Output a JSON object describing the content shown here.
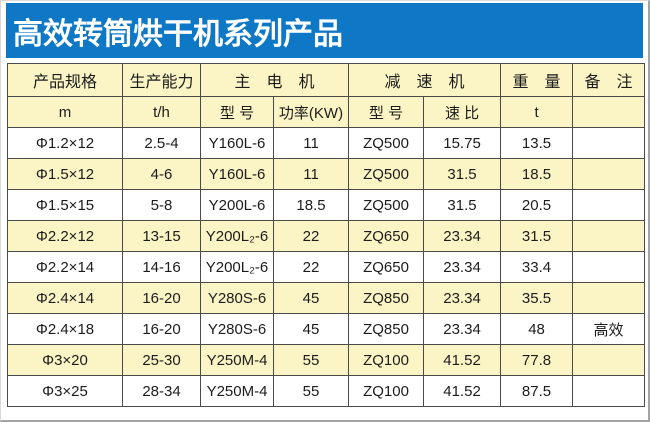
{
  "title": "高效转筒烘干机系列产品",
  "colors": {
    "title_bg": "#0f78c6",
    "title_text": "#ffffff",
    "header_bg": "#fbf4c5",
    "alt_row_bg": "#fbf4c5",
    "row_bg": "#ffffff",
    "border": "#4a4a4a",
    "text": "#1c1c1c"
  },
  "table": {
    "header_groups": [
      {
        "label": "产品规格"
      },
      {
        "label": "生产能力"
      },
      {
        "label": "主　电　机"
      },
      {
        "label": "减　速　机"
      },
      {
        "label": "重　量"
      },
      {
        "label": "备　注"
      }
    ],
    "sub_headers": [
      "m",
      "t/h",
      "型 号",
      "功率(KW)",
      "型 号",
      "速 比",
      "t",
      ""
    ],
    "rows": [
      [
        "Φ1.2×12",
        "2.5-4",
        "Y160L-6",
        "11",
        "ZQ500",
        "15.75",
        "13.5",
        ""
      ],
      [
        "Φ1.5×12",
        "4-6",
        "Y160L-6",
        "11",
        "ZQ500",
        "31.5",
        "18.5",
        ""
      ],
      [
        "Φ1.5×15",
        "5-8",
        "Y200L-6",
        "18.5",
        "ZQ500",
        "31.5",
        "20.5",
        ""
      ],
      [
        "Φ2.2×12",
        "13-15",
        "Y200L₂-6",
        "22",
        "ZQ650",
        "23.34",
        "31.5",
        ""
      ],
      [
        "Φ2.2×14",
        "14-16",
        "Y200L₂-6",
        "22",
        "ZQ650",
        "23.34",
        "33.4",
        ""
      ],
      [
        "Φ2.4×14",
        "16-20",
        "Y280S-6",
        "45",
        "ZQ850",
        "23.34",
        "35.5",
        ""
      ],
      [
        "Φ2.4×18",
        "16-20",
        "Y280S-6",
        "45",
        "ZQ850",
        "23.34",
        "48",
        "高效"
      ],
      [
        "Φ3×20",
        "25-30",
        "Y250M-4",
        "55",
        "ZQ100",
        "41.52",
        "77.8",
        ""
      ],
      [
        "Φ3×25",
        "28-34",
        "Y250M-4",
        "55",
        "ZQ100",
        "41.52",
        "87.5",
        ""
      ]
    ]
  }
}
